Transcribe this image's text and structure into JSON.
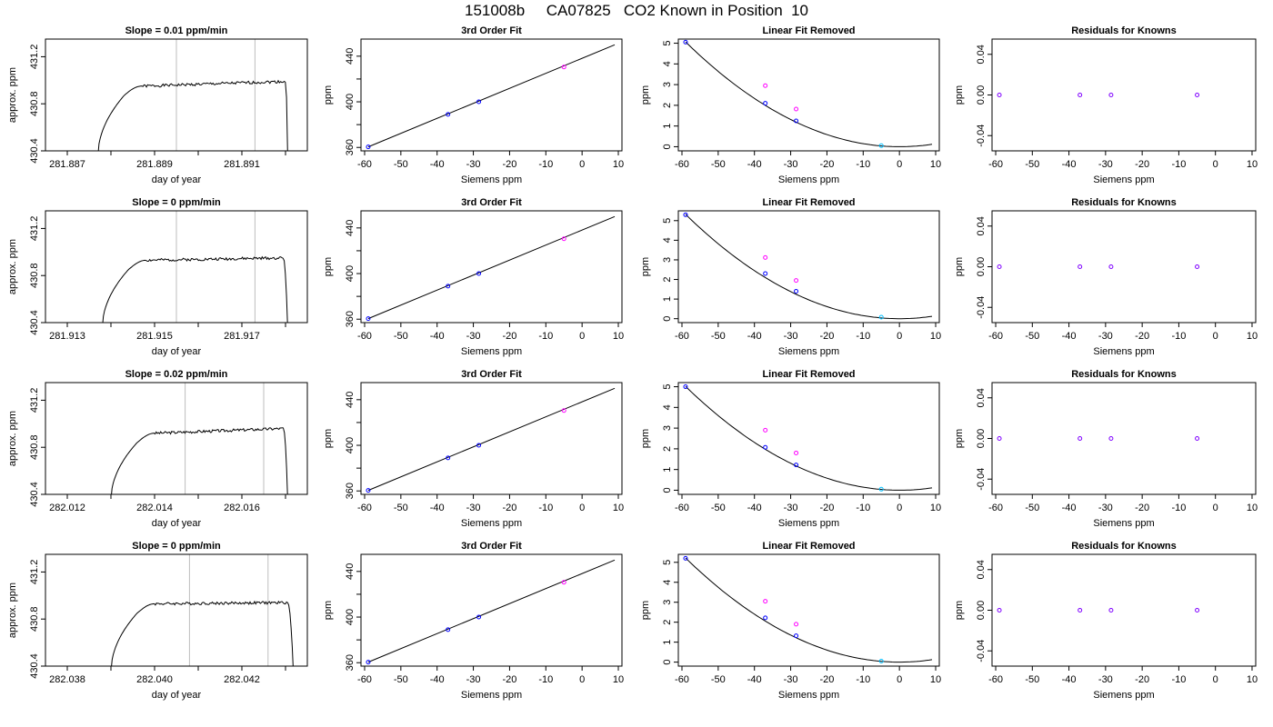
{
  "figure": {
    "title": "151008b     CA07825   CO2 Known in Position  10"
  },
  "colors": {
    "frame": "#000000",
    "curve": "#000000",
    "vline": "#bebebe",
    "blue": "#0000ff",
    "magenta": "#ff00ff",
    "cyan": "#00bfff",
    "purple": "#7f00ff"
  },
  "chart_data": [
    {
      "row": 1,
      "col": 1,
      "type": "line",
      "title": "Slope =  0.01  ppm/min",
      "xlabel": "day of year",
      "ylabel": "approx. ppm",
      "xlim": [
        281.8865,
        281.8925
      ],
      "ylim": [
        430.4,
        431.35
      ],
      "xticks": [
        281.887,
        281.888,
        281.889,
        281.89,
        281.891,
        281.892
      ],
      "xtick_labels": [
        "281.887",
        "",
        "281.889",
        "",
        "281.891",
        ""
      ],
      "yticks": [
        430.4,
        430.8,
        431.2
      ],
      "ytick_labels": [
        "430.4",
        "430.8",
        "431.2"
      ],
      "vlines": [
        281.8895,
        281.8913
      ],
      "trace": {
        "x_start": 281.8877,
        "x_rise_end": 281.8883,
        "plateau_start": 281.8887,
        "x_end": 281.892,
        "x_drop": 281.89205,
        "level": 430.95,
        "level_end": 430.99,
        "noise": 0.012,
        "seed": 1
      }
    },
    {
      "row": 1,
      "col": 2,
      "type": "scatter",
      "title": "3rd Order Fit",
      "xlabel": "Siemens ppm",
      "ylabel": "ppm",
      "xlim": [
        -61,
        11
      ],
      "ylim": [
        357,
        455
      ],
      "xticks": [
        -60,
        -50,
        -40,
        -30,
        -20,
        -10,
        0,
        10
      ],
      "xtick_labels": [
        "-60",
        "-50",
        "-40",
        "-30",
        "-20",
        "-10",
        "0",
        "10"
      ],
      "yticks": [
        360,
        380,
        400,
        420,
        440
      ],
      "ytick_labels": [
        "360",
        "",
        "400",
        "",
        "440"
      ],
      "line": {
        "x": [
          -59,
          9
        ],
        "y": [
          360.5,
          450
        ]
      },
      "points": [
        {
          "x": -59,
          "y": 360.5,
          "color": "blue"
        },
        {
          "x": -37,
          "y": 389,
          "color": "blue"
        },
        {
          "x": -28.5,
          "y": 400,
          "color": "blue"
        },
        {
          "x": -5,
          "y": 430.5,
          "color": "magenta"
        }
      ]
    },
    {
      "row": 1,
      "col": 3,
      "type": "scatter",
      "title": "Linear Fit Removed",
      "xlabel": "Siemens ppm",
      "ylabel": "ppm",
      "xlim": [
        -61,
        11
      ],
      "ylim": [
        -0.2,
        5.2
      ],
      "xticks": [
        -60,
        -50,
        -40,
        -30,
        -20,
        -10,
        0,
        10
      ],
      "xtick_labels": [
        "-60",
        "-50",
        "-40",
        "-30",
        "-20",
        "-10",
        "0",
        "10"
      ],
      "yticks": [
        0,
        1,
        2,
        3,
        4,
        5
      ],
      "ytick_labels": [
        "0",
        "1",
        "2",
        "3",
        "4",
        "5"
      ],
      "curve": {
        "a": 0.001449,
        "x_from": -59,
        "x_to": 9,
        "y_at_10": 0.145
      },
      "points": [
        {
          "x": -59,
          "y": 5.05,
          "color": "blue"
        },
        {
          "x": -37,
          "y": 2.1,
          "color": "blue"
        },
        {
          "x": -28.5,
          "y": 1.25,
          "color": "blue"
        },
        {
          "x": -5,
          "y": 0.05,
          "color": "cyan"
        },
        {
          "x": -37,
          "y": 2.95,
          "color": "magenta"
        },
        {
          "x": -28.5,
          "y": 1.82,
          "color": "magenta"
        }
      ]
    },
    {
      "row": 1,
      "col": 4,
      "type": "scatter",
      "title": "Residuals for Knowns",
      "xlabel": "Siemens ppm",
      "ylabel": "ppm",
      "xlim": [
        -61,
        11
      ],
      "ylim": [
        -0.055,
        0.055
      ],
      "xticks": [
        -60,
        -50,
        -40,
        -30,
        -20,
        -10,
        0,
        10
      ],
      "xtick_labels": [
        "-60",
        "-50",
        "-40",
        "-30",
        "-20",
        "-10",
        "0",
        "10"
      ],
      "yticks": [
        -0.04,
        0,
        0.04
      ],
      "ytick_labels": [
        "-0.04",
        "0.00",
        "0.04"
      ],
      "points": [
        {
          "x": -59,
          "y": 0,
          "color": "purple"
        },
        {
          "x": -37,
          "y": 0,
          "color": "purple"
        },
        {
          "x": -28.5,
          "y": 0,
          "color": "purple"
        },
        {
          "x": -5,
          "y": 0,
          "color": "purple"
        }
      ]
    },
    {
      "row": 2,
      "col": 1,
      "type": "line",
      "title": "Slope =  0  ppm/min",
      "xlabel": "day of year",
      "ylabel": "approx. ppm",
      "xlim": [
        281.9125,
        281.9185
      ],
      "ylim": [
        430.4,
        431.35
      ],
      "xticks": [
        281.913,
        281.914,
        281.915,
        281.916,
        281.917,
        281.918
      ],
      "xtick_labels": [
        "281.913",
        "",
        "281.915",
        "",
        "281.917",
        ""
      ],
      "yticks": [
        430.4,
        430.8,
        431.2
      ],
      "ytick_labels": [
        "430.4",
        "430.8",
        "431.2"
      ],
      "vlines": [
        281.9155,
        281.9173
      ],
      "trace": {
        "x_start": 281.9138,
        "x_rise_end": 281.9144,
        "plateau_start": 281.9148,
        "x_end": 281.91795,
        "x_drop": 281.91805,
        "level": 430.93,
        "level_end": 430.95,
        "noise": 0.012,
        "seed": 2
      }
    },
    {
      "row": 2,
      "col": 2,
      "type": "scatter",
      "title": "3rd Order Fit",
      "xlabel": "Siemens ppm",
      "ylabel": "ppm",
      "xlim": [
        -61,
        11
      ],
      "ylim": [
        357,
        455
      ],
      "xticks": [
        -60,
        -50,
        -40,
        -30,
        -20,
        -10,
        0,
        10
      ],
      "xtick_labels": [
        "-60",
        "-50",
        "-40",
        "-30",
        "-20",
        "-10",
        "0",
        "10"
      ],
      "yticks": [
        360,
        380,
        400,
        420,
        440
      ],
      "ytick_labels": [
        "360",
        "",
        "400",
        "",
        "440"
      ],
      "line": {
        "x": [
          -59,
          9
        ],
        "y": [
          360.5,
          450
        ]
      },
      "points": [
        {
          "x": -59,
          "y": 360.5,
          "color": "blue"
        },
        {
          "x": -37,
          "y": 389,
          "color": "blue"
        },
        {
          "x": -28.5,
          "y": 400,
          "color": "blue"
        },
        {
          "x": -5,
          "y": 430.5,
          "color": "magenta"
        }
      ]
    },
    {
      "row": 2,
      "col": 3,
      "type": "scatter",
      "title": "Linear Fit Removed",
      "xlabel": "Siemens ppm",
      "ylabel": "ppm",
      "xlim": [
        -61,
        11
      ],
      "ylim": [
        -0.2,
        5.5
      ],
      "xticks": [
        -60,
        -50,
        -40,
        -30,
        -20,
        -10,
        0,
        10
      ],
      "xtick_labels": [
        "-60",
        "-50",
        "-40",
        "-30",
        "-20",
        "-10",
        "0",
        "10"
      ],
      "yticks": [
        0,
        1,
        2,
        3,
        4,
        5
      ],
      "ytick_labels": [
        "0",
        "1",
        "2",
        "3",
        "4",
        "5"
      ],
      "curve": {
        "a": 0.001522,
        "x_from": -59,
        "x_to": 9,
        "y_at_10": 0.15
      },
      "points": [
        {
          "x": -59,
          "y": 5.3,
          "color": "blue"
        },
        {
          "x": -37,
          "y": 2.3,
          "color": "blue"
        },
        {
          "x": -28.5,
          "y": 1.4,
          "color": "blue"
        },
        {
          "x": -5,
          "y": 0.08,
          "color": "cyan"
        },
        {
          "x": -37,
          "y": 3.12,
          "color": "magenta"
        },
        {
          "x": -28.5,
          "y": 1.95,
          "color": "magenta"
        }
      ]
    },
    {
      "row": 2,
      "col": 4,
      "type": "scatter",
      "title": "Residuals for Knowns",
      "xlabel": "Siemens ppm",
      "ylabel": "ppm",
      "xlim": [
        -61,
        11
      ],
      "ylim": [
        -0.055,
        0.055
      ],
      "xticks": [
        -60,
        -50,
        -40,
        -30,
        -20,
        -10,
        0,
        10
      ],
      "xtick_labels": [
        "-60",
        "-50",
        "-40",
        "-30",
        "-20",
        "-10",
        "0",
        "10"
      ],
      "yticks": [
        -0.04,
        0,
        0.04
      ],
      "ytick_labels": [
        "-0.04",
        "0.00",
        "0.04"
      ],
      "points": [
        {
          "x": -59,
          "y": 0,
          "color": "purple"
        },
        {
          "x": -37,
          "y": 0,
          "color": "purple"
        },
        {
          "x": -28.5,
          "y": 0,
          "color": "purple"
        },
        {
          "x": -5,
          "y": 0,
          "color": "purple"
        }
      ]
    },
    {
      "row": 3,
      "col": 1,
      "type": "line",
      "title": "Slope =  0.02  ppm/min",
      "xlabel": "day of year",
      "ylabel": "approx. ppm",
      "xlim": [
        282.0115,
        282.0175
      ],
      "ylim": [
        430.4,
        431.35
      ],
      "xticks": [
        282.012,
        282.013,
        282.014,
        282.015,
        282.016,
        282.017
      ],
      "xtick_labels": [
        "282.012",
        "",
        "282.014",
        "",
        "282.016",
        ""
      ],
      "yticks": [
        430.4,
        430.8,
        431.2
      ],
      "ytick_labels": [
        "430.4",
        "430.8",
        "431.2"
      ],
      "vlines": [
        282.0147,
        282.0165
      ],
      "trace": {
        "x_start": 282.013,
        "x_rise_end": 282.0136,
        "plateau_start": 282.014,
        "x_end": 282.01695,
        "x_drop": 282.01705,
        "level": 430.92,
        "level_end": 430.96,
        "noise": 0.012,
        "seed": 3
      }
    },
    {
      "row": 3,
      "col": 2,
      "type": "scatter",
      "title": "3rd Order Fit",
      "xlabel": "Siemens ppm",
      "ylabel": "ppm",
      "xlim": [
        -61,
        11
      ],
      "ylim": [
        357,
        455
      ],
      "xticks": [
        -60,
        -50,
        -40,
        -30,
        -20,
        -10,
        0,
        10
      ],
      "xtick_labels": [
        "-60",
        "-50",
        "-40",
        "-30",
        "-20",
        "-10",
        "0",
        "10"
      ],
      "yticks": [
        360,
        380,
        400,
        420,
        440
      ],
      "ytick_labels": [
        "360",
        "",
        "400",
        "",
        "440"
      ],
      "line": {
        "x": [
          -59,
          9
        ],
        "y": [
          360.5,
          450
        ]
      },
      "points": [
        {
          "x": -59,
          "y": 360.5,
          "color": "blue"
        },
        {
          "x": -37,
          "y": 389,
          "color": "blue"
        },
        {
          "x": -28.5,
          "y": 400,
          "color": "blue"
        },
        {
          "x": -5,
          "y": 430.5,
          "color": "magenta"
        }
      ]
    },
    {
      "row": 3,
      "col": 3,
      "type": "scatter",
      "title": "Linear Fit Removed",
      "xlabel": "Siemens ppm",
      "ylabel": "ppm",
      "xlim": [
        -61,
        11
      ],
      "ylim": [
        -0.2,
        5.2
      ],
      "xticks": [
        -60,
        -50,
        -40,
        -30,
        -20,
        -10,
        0,
        10
      ],
      "xtick_labels": [
        "-60",
        "-50",
        "-40",
        "-30",
        "-20",
        "-10",
        "0",
        "10"
      ],
      "yticks": [
        0,
        1,
        2,
        3,
        4,
        5
      ],
      "ytick_labels": [
        "0",
        "1",
        "2",
        "3",
        "4",
        "5"
      ],
      "curve": {
        "a": 0.001435,
        "x_from": -59,
        "x_to": 9,
        "y_at_10": 0.14
      },
      "points": [
        {
          "x": -59,
          "y": 5.0,
          "color": "blue"
        },
        {
          "x": -37,
          "y": 2.07,
          "color": "blue"
        },
        {
          "x": -28.5,
          "y": 1.22,
          "color": "blue"
        },
        {
          "x": -5,
          "y": 0.05,
          "color": "cyan"
        },
        {
          "x": -37,
          "y": 2.9,
          "color": "magenta"
        },
        {
          "x": -28.5,
          "y": 1.8,
          "color": "magenta"
        }
      ]
    },
    {
      "row": 3,
      "col": 4,
      "type": "scatter",
      "title": "Residuals for Knowns",
      "xlabel": "Siemens ppm",
      "ylabel": "ppm",
      "xlim": [
        -61,
        11
      ],
      "ylim": [
        -0.055,
        0.055
      ],
      "xticks": [
        -60,
        -50,
        -40,
        -30,
        -20,
        -10,
        0,
        10
      ],
      "xtick_labels": [
        "-60",
        "-50",
        "-40",
        "-30",
        "-20",
        "-10",
        "0",
        "10"
      ],
      "yticks": [
        -0.04,
        0,
        0.04
      ],
      "ytick_labels": [
        "-0.04",
        "0.00",
        "0.04"
      ],
      "points": [
        {
          "x": -59,
          "y": 0,
          "color": "purple"
        },
        {
          "x": -37,
          "y": 0,
          "color": "purple"
        },
        {
          "x": -28.5,
          "y": 0,
          "color": "purple"
        },
        {
          "x": -5,
          "y": 0,
          "color": "purple"
        }
      ]
    },
    {
      "row": 4,
      "col": 1,
      "type": "line",
      "title": "Slope =  0  ppm/min",
      "xlabel": "day of year",
      "ylabel": "approx. ppm",
      "xlim": [
        282.0375,
        282.0435
      ],
      "ylim": [
        430.4,
        431.35
      ],
      "xticks": [
        282.038,
        282.039,
        282.04,
        282.041,
        282.042,
        282.043
      ],
      "xtick_labels": [
        "282.038",
        "",
        "282.040",
        "",
        "282.042",
        ""
      ],
      "yticks": [
        430.4,
        430.8,
        431.2
      ],
      "ytick_labels": [
        "430.4",
        "430.8",
        "431.2"
      ],
      "vlines": [
        282.0408,
        282.0426
      ],
      "trace": {
        "x_start": 282.039,
        "x_rise_end": 282.0396,
        "plateau_start": 282.04,
        "x_end": 282.04305,
        "x_drop": 282.04318,
        "level": 430.93,
        "level_end": 430.94,
        "noise": 0.012,
        "seed": 4
      }
    },
    {
      "row": 4,
      "col": 2,
      "type": "scatter",
      "title": "3rd Order Fit",
      "xlabel": "Siemens ppm",
      "ylabel": "ppm",
      "xlim": [
        -61,
        11
      ],
      "ylim": [
        357,
        455
      ],
      "xticks": [
        -60,
        -50,
        -40,
        -30,
        -20,
        -10,
        0,
        10
      ],
      "xtick_labels": [
        "-60",
        "-50",
        "-40",
        "-30",
        "-20",
        "-10",
        "0",
        "10"
      ],
      "yticks": [
        360,
        380,
        400,
        420,
        440
      ],
      "ytick_labels": [
        "360",
        "",
        "400",
        "",
        "440"
      ],
      "line": {
        "x": [
          -59,
          9
        ],
        "y": [
          360.5,
          450
        ]
      },
      "points": [
        {
          "x": -59,
          "y": 360.5,
          "color": "blue"
        },
        {
          "x": -37,
          "y": 389,
          "color": "blue"
        },
        {
          "x": -28.5,
          "y": 400,
          "color": "blue"
        },
        {
          "x": -5,
          "y": 430.5,
          "color": "magenta"
        }
      ]
    },
    {
      "row": 4,
      "col": 3,
      "type": "scatter",
      "title": "Linear Fit Removed",
      "xlabel": "Siemens ppm",
      "ylabel": "ppm",
      "xlim": [
        -61,
        11
      ],
      "ylim": [
        -0.2,
        5.4
      ],
      "xticks": [
        -60,
        -50,
        -40,
        -30,
        -20,
        -10,
        0,
        10
      ],
      "xtick_labels": [
        "-60",
        "-50",
        "-40",
        "-30",
        "-20",
        "-10",
        "0",
        "10"
      ],
      "yticks": [
        0,
        1,
        2,
        3,
        4,
        5
      ],
      "ytick_labels": [
        "0",
        "1",
        "2",
        "3",
        "4",
        "5"
      ],
      "curve": {
        "a": 0.001493,
        "x_from": -59,
        "x_to": 9,
        "y_at_10": 0.15
      },
      "points": [
        {
          "x": -59,
          "y": 5.2,
          "color": "blue"
        },
        {
          "x": -37,
          "y": 2.22,
          "color": "blue"
        },
        {
          "x": -28.5,
          "y": 1.32,
          "color": "blue"
        },
        {
          "x": -5,
          "y": 0.05,
          "color": "cyan"
        },
        {
          "x": -37,
          "y": 3.05,
          "color": "magenta"
        },
        {
          "x": -28.5,
          "y": 1.9,
          "color": "magenta"
        }
      ]
    },
    {
      "row": 4,
      "col": 4,
      "type": "scatter",
      "title": "Residuals for Knowns",
      "xlabel": "Siemens ppm",
      "ylabel": "ppm",
      "xlim": [
        -61,
        11
      ],
      "ylim": [
        -0.055,
        0.055
      ],
      "xticks": [
        -60,
        -50,
        -40,
        -30,
        -20,
        -10,
        0,
        10
      ],
      "xtick_labels": [
        "-60",
        "-50",
        "-40",
        "-30",
        "-20",
        "-10",
        "0",
        "10"
      ],
      "yticks": [
        -0.04,
        0,
        0.04
      ],
      "ytick_labels": [
        "-0.04",
        "0.00",
        "0.04"
      ],
      "points": [
        {
          "x": -59,
          "y": 0,
          "color": "purple"
        },
        {
          "x": -37,
          "y": 0,
          "color": "purple"
        },
        {
          "x": -28.5,
          "y": 0,
          "color": "purple"
        },
        {
          "x": -5,
          "y": 0,
          "color": "purple"
        }
      ]
    }
  ]
}
